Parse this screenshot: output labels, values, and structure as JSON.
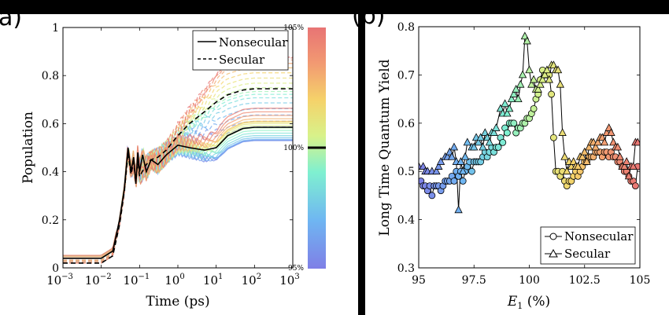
{
  "panel_a": {
    "label": "a)",
    "legend": {
      "nonsecular": "Nonsecular",
      "secular": "Secular"
    },
    "colorbar": {
      "top": "105%",
      "mid": "100%",
      "bottom": "95%"
    }
  },
  "panel_b": {
    "label": "(b)"
  },
  "chart_data": [
    {
      "type": "line",
      "xscale": "log",
      "xlabel": "Time (ps)",
      "ylabel": "Population",
      "xlim": [
        0.001,
        1000
      ],
      "ylim": [
        0,
        1
      ],
      "x_ticks": [
        "10^-3",
        "10^-2",
        "10^-1",
        "10^0",
        "10^1",
        "10^2",
        "10^3"
      ],
      "y_ticks": [
        0,
        0.2,
        0.4,
        0.6,
        0.8,
        1
      ],
      "legend_position": "top-right",
      "grid": false,
      "series": [
        {
          "name": "Nonsecular",
          "style": "solid",
          "color": "#000000",
          "x": [
            0.001,
            0.01,
            0.02,
            0.03,
            0.04,
            0.05,
            0.06,
            0.07,
            0.08,
            0.09,
            0.1,
            0.12,
            0.15,
            0.2,
            0.3,
            0.5,
            0.7,
            1,
            2,
            5,
            10,
            20,
            50,
            100,
            1000
          ],
          "y": [
            0.04,
            0.04,
            0.07,
            0.2,
            0.33,
            0.5,
            0.4,
            0.46,
            0.35,
            0.48,
            0.4,
            0.47,
            0.4,
            0.45,
            0.43,
            0.47,
            0.49,
            0.51,
            0.5,
            0.49,
            0.5,
            0.55,
            0.58,
            0.585,
            0.585
          ]
        },
        {
          "name": "Secular",
          "style": "dashed",
          "color": "#000000",
          "x": [
            0.001,
            0.01,
            0.02,
            0.03,
            0.04,
            0.05,
            0.06,
            0.07,
            0.08,
            0.09,
            0.1,
            0.15,
            0.2,
            0.3,
            0.5,
            1,
            2,
            5,
            10,
            20,
            50,
            100,
            1000
          ],
          "y": [
            0.02,
            0.02,
            0.05,
            0.18,
            0.32,
            0.48,
            0.39,
            0.44,
            0.36,
            0.45,
            0.38,
            0.43,
            0.45,
            0.46,
            0.49,
            0.55,
            0.6,
            0.65,
            0.69,
            0.72,
            0.74,
            0.745,
            0.745
          ]
        }
      ],
      "colorbar": {
        "labels": [
          "105%",
          "100%",
          "95%"
        ],
        "range": [
          95,
          105
        ],
        "colormap": "rainbow"
      }
    },
    {
      "type": "line",
      "xlabel": "E1 (%)",
      "ylabel": "Long Time Quantum Yield",
      "xlim": [
        95,
        105
      ],
      "ylim": [
        0.3,
        0.8
      ],
      "x_ticks": [
        95,
        97.5,
        100,
        102.5,
        105
      ],
      "y_ticks": [
        0.3,
        0.4,
        0.5,
        0.6,
        0.7,
        0.8
      ],
      "legend_position": "bottom-right",
      "grid": false,
      "series": [
        {
          "name": "Nonsecular",
          "marker": "circle",
          "x": [
            95.1,
            95.2,
            95.3,
            95.4,
            95.5,
            95.6,
            95.7,
            95.8,
            95.9,
            96.0,
            96.1,
            96.2,
            96.3,
            96.4,
            96.5,
            96.6,
            96.7,
            96.8,
            96.9,
            97.0,
            97.1,
            97.2,
            97.3,
            97.4,
            97.5,
            97.6,
            97.7,
            97.8,
            97.9,
            98.0,
            98.1,
            98.2,
            98.3,
            98.4,
            98.5,
            98.6,
            98.7,
            98.8,
            98.9,
            99.0,
            99.1,
            99.2,
            99.3,
            99.4,
            99.5,
            99.6,
            99.7,
            99.8,
            99.9,
            100.0,
            100.1,
            100.2,
            100.3,
            100.4,
            100.5,
            100.6,
            100.7,
            100.8,
            100.9,
            101.0,
            101.1,
            101.2,
            101.3,
            101.4,
            101.5,
            101.6,
            101.7,
            101.8,
            101.9,
            102.0,
            102.1,
            102.2,
            102.3,
            102.4,
            102.5,
            102.6,
            102.7,
            102.8,
            102.9,
            103.0,
            103.1,
            103.2,
            103.3,
            103.4,
            103.5,
            103.6,
            103.7,
            103.8,
            103.9,
            104.0,
            104.1,
            104.2,
            104.3,
            104.4,
            104.5,
            104.6,
            104.7,
            104.8,
            104.9
          ],
          "y": [
            0.48,
            0.47,
            0.47,
            0.46,
            0.47,
            0.45,
            0.47,
            0.47,
            0.47,
            0.46,
            0.47,
            0.48,
            0.48,
            0.48,
            0.49,
            0.48,
            0.5,
            0.49,
            0.5,
            0.48,
            0.5,
            0.51,
            0.52,
            0.5,
            0.52,
            0.52,
            0.52,
            0.52,
            0.53,
            0.54,
            0.53,
            0.54,
            0.55,
            0.54,
            0.55,
            0.55,
            0.57,
            0.56,
            0.59,
            0.58,
            0.6,
            0.6,
            0.6,
            0.58,
            0.59,
            0.59,
            0.6,
            0.6,
            0.61,
            0.61,
            0.62,
            0.63,
            0.65,
            0.66,
            0.69,
            0.71,
            0.7,
            0.7,
            0.7,
            0.66,
            0.57,
            0.5,
            0.5,
            0.49,
            0.5,
            0.48,
            0.47,
            0.48,
            0.48,
            0.49,
            0.5,
            0.49,
            0.5,
            0.51,
            0.52,
            0.52,
            0.53,
            0.53,
            0.53,
            0.54,
            0.54,
            0.54,
            0.53,
            0.54,
            0.54,
            0.53,
            0.54,
            0.53,
            0.53,
            0.52,
            0.52,
            0.51,
            0.5,
            0.5,
            0.49,
            0.48,
            0.48,
            0.47,
            0.51
          ]
        },
        {
          "name": "Secular",
          "marker": "triangle",
          "x": [
            95.0,
            95.2,
            95.3,
            95.4,
            95.6,
            95.8,
            95.9,
            96.0,
            96.2,
            96.3,
            96.4,
            96.5,
            96.6,
            96.7,
            96.8,
            96.9,
            97.0,
            97.1,
            97.2,
            97.4,
            97.5,
            97.6,
            97.7,
            97.8,
            97.9,
            98.0,
            98.1,
            98.2,
            98.3,
            98.4,
            98.5,
            98.7,
            98.8,
            98.9,
            99.0,
            99.1,
            99.2,
            99.3,
            99.4,
            99.5,
            99.6,
            99.7,
            99.8,
            99.9,
            100.0,
            100.1,
            100.2,
            100.3,
            100.4,
            100.5,
            100.6,
            100.7,
            100.8,
            100.9,
            101.0,
            101.1,
            101.2,
            101.3,
            101.4,
            101.5,
            101.6,
            101.7,
            101.8,
            101.9,
            102.0,
            102.1,
            102.2,
            102.3,
            102.4,
            102.5,
            102.6,
            102.7,
            102.8,
            102.9,
            103.0,
            103.1,
            103.2,
            103.3,
            103.4,
            103.5,
            103.6,
            103.7,
            103.8,
            103.9,
            104.0,
            104.1,
            104.2,
            104.3,
            104.4,
            104.5,
            104.6,
            104.7,
            104.8,
            104.9
          ],
          "y": [
            0.51,
            0.51,
            0.5,
            0.5,
            0.5,
            0.5,
            0.51,
            0.52,
            0.53,
            0.53,
            0.54,
            0.53,
            0.55,
            0.52,
            0.42,
            0.52,
            0.5,
            0.53,
            0.56,
            0.55,
            0.55,
            0.57,
            0.56,
            0.57,
            0.55,
            0.58,
            0.57,
            0.56,
            0.58,
            0.58,
            0.59,
            0.63,
            0.62,
            0.64,
            0.62,
            0.63,
            0.65,
            0.66,
            0.67,
            0.65,
            0.68,
            0.7,
            0.78,
            0.77,
            0.71,
            0.68,
            0.69,
            0.67,
            0.67,
            0.68,
            0.69,
            0.7,
            0.71,
            0.69,
            0.72,
            0.72,
            0.71,
            0.71,
            0.68,
            0.58,
            0.53,
            0.5,
            0.52,
            0.51,
            0.52,
            0.51,
            0.51,
            0.53,
            0.53,
            0.54,
            0.52,
            0.55,
            0.56,
            0.56,
            0.55,
            0.56,
            0.57,
            0.57,
            0.56,
            0.58,
            0.59,
            0.58,
            0.56,
            0.55,
            0.55,
            0.53,
            0.51,
            0.51,
            0.52,
            0.49,
            0.51,
            0.51,
            0.56,
            0.56
          ]
        }
      ]
    }
  ]
}
